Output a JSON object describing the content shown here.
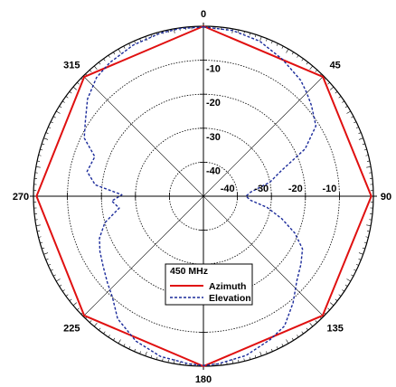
{
  "chart_data": {
    "type": "polar",
    "r_unit": "dB",
    "r_range": [
      -50,
      0
    ],
    "grid_rings": [
      -40,
      -30,
      -20,
      -10,
      0
    ],
    "radial_tick_labels": [
      "-10",
      "-20",
      "-30",
      "-40"
    ],
    "horizontal_tick_labels": [
      "-40",
      "-30",
      "-20",
      "-10"
    ],
    "angle_labels": [
      {
        "angle": 0,
        "text": "0"
      },
      {
        "angle": 45,
        "text": "45"
      },
      {
        "angle": 90,
        "text": "90"
      },
      {
        "angle": 135,
        "text": "135"
      },
      {
        "angle": 180,
        "text": "180"
      },
      {
        "angle": 225,
        "text": "225"
      },
      {
        "angle": 270,
        "text": "270"
      },
      {
        "angle": 315,
        "text": "315"
      }
    ],
    "legend": {
      "title": "450 MHz",
      "placement": "center-bottom",
      "entries": [
        "Azimuth",
        "Elevation"
      ]
    },
    "series": [
      {
        "name": "Azimuth",
        "color": "#e01010",
        "style": "solid",
        "points": [
          [
            0,
            0.0
          ],
          [
            45,
            -0.3
          ],
          [
            90,
            -0.6
          ],
          [
            135,
            -0.4
          ],
          [
            180,
            0.0
          ],
          [
            225,
            -0.4
          ],
          [
            270,
            -0.9
          ],
          [
            315,
            -0.4
          ],
          [
            360,
            0.0
          ]
        ]
      },
      {
        "name": "Elevation",
        "color": "#1a2a9a",
        "style": "dashed",
        "points": [
          [
            0,
            -0.2
          ],
          [
            10,
            -0.5
          ],
          [
            20,
            -1.5
          ],
          [
            30,
            -3.5
          ],
          [
            40,
            -5.5
          ],
          [
            45,
            -7.0
          ],
          [
            50,
            -8.5
          ],
          [
            58,
            -11
          ],
          [
            65,
            -17
          ],
          [
            72,
            -26
          ],
          [
            78,
            -30
          ],
          [
            85,
            -36
          ],
          [
            90,
            -37.5
          ],
          [
            95,
            -36
          ],
          [
            100,
            -31
          ],
          [
            106,
            -26
          ],
          [
            112,
            -21
          ],
          [
            118,
            -17
          ],
          [
            125,
            -15
          ],
          [
            132,
            -13
          ],
          [
            140,
            -9
          ],
          [
            148,
            -5
          ],
          [
            155,
            -3.5
          ],
          [
            165,
            -1.5
          ],
          [
            175,
            -0.5
          ],
          [
            180,
            -0.2
          ],
          [
            185,
            -0.5
          ],
          [
            195,
            -1.2
          ],
          [
            205,
            -3
          ],
          [
            215,
            -6
          ],
          [
            222,
            -10
          ],
          [
            228,
            -12
          ],
          [
            235,
            -14
          ],
          [
            242,
            -15.5
          ],
          [
            248,
            -17
          ],
          [
            255,
            -20
          ],
          [
            262,
            -25
          ],
          [
            267,
            -23
          ],
          [
            271,
            -26
          ],
          [
            276,
            -18
          ],
          [
            282,
            -15
          ],
          [
            290,
            -16
          ],
          [
            296,
            -11
          ],
          [
            302,
            -9
          ],
          [
            310,
            -5.5
          ],
          [
            318,
            -3
          ],
          [
            325,
            -2
          ],
          [
            335,
            -1
          ],
          [
            345,
            -0.4
          ],
          [
            352,
            -0.2
          ],
          [
            360,
            -0.2
          ]
        ]
      }
    ]
  }
}
